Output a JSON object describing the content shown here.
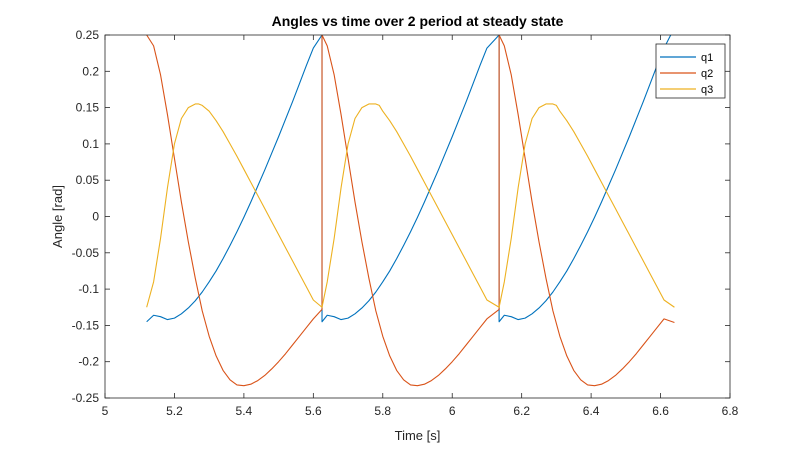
{
  "chart_data": {
    "type": "line",
    "title": "Angles vs time over 2 period at steady state",
    "xlabel": "Time [s]",
    "ylabel": "Angle [rad]",
    "xlim": [
      5,
      6.8
    ],
    "ylim": [
      -0.25,
      0.25
    ],
    "xticks": [
      5,
      5.2,
      5.4,
      5.6,
      5.8,
      6,
      6.2,
      6.4,
      6.6,
      6.8
    ],
    "xtick_labels": [
      "5",
      "5.2",
      "5.4",
      "5.6",
      "5.8",
      "6",
      "6.2",
      "6.4",
      "6.6",
      "6.8"
    ],
    "yticks": [
      -0.25,
      -0.2,
      -0.15,
      -0.1,
      -0.05,
      0,
      0.05,
      0.1,
      0.15,
      0.2,
      0.25
    ],
    "ytick_labels": [
      "-0.25",
      "-0.2",
      "-0.15",
      "-0.1",
      "-0.05",
      "0",
      "0.05",
      "0.1",
      "0.15",
      "0.2",
      "0.25"
    ],
    "grid": false,
    "legend_position": "top-right",
    "series": [
      {
        "name": "q1",
        "color": "#0072BD",
        "x": [
          5.12,
          5.14,
          5.16,
          5.18,
          5.2,
          5.22,
          5.24,
          5.26,
          5.28,
          5.3,
          5.32,
          5.34,
          5.36,
          5.38,
          5.4,
          5.42,
          5.44,
          5.46,
          5.48,
          5.5,
          5.52,
          5.54,
          5.56,
          5.58,
          5.6,
          5.625,
          5.625,
          5.64,
          5.66,
          5.68,
          5.7,
          5.72,
          5.74,
          5.76,
          5.78,
          5.8,
          5.82,
          5.84,
          5.86,
          5.88,
          5.9,
          5.92,
          5.94,
          5.96,
          5.98,
          6.0,
          6.02,
          6.04,
          6.06,
          6.08,
          6.1,
          6.135,
          6.135,
          6.15,
          6.17,
          6.19,
          6.21,
          6.23,
          6.25,
          6.27,
          6.29,
          6.31,
          6.33,
          6.35,
          6.37,
          6.39,
          6.41,
          6.43,
          6.45,
          6.47,
          6.49,
          6.51,
          6.53,
          6.55,
          6.57,
          6.59,
          6.61,
          6.64
        ],
        "y": [
          -0.145,
          -0.136,
          -0.138,
          -0.142,
          -0.14,
          -0.134,
          -0.126,
          -0.116,
          -0.104,
          -0.09,
          -0.075,
          -0.058,
          -0.04,
          -0.021,
          -0.001,
          0.02,
          0.042,
          0.064,
          0.087,
          0.11,
          0.134,
          0.158,
          0.183,
          0.208,
          0.232,
          0.25,
          -0.145,
          -0.136,
          -0.138,
          -0.142,
          -0.14,
          -0.134,
          -0.126,
          -0.116,
          -0.104,
          -0.09,
          -0.075,
          -0.058,
          -0.04,
          -0.021,
          -0.001,
          0.02,
          0.042,
          0.064,
          0.087,
          0.11,
          0.134,
          0.158,
          0.183,
          0.208,
          0.232,
          0.25,
          -0.145,
          -0.136,
          -0.138,
          -0.142,
          -0.14,
          -0.134,
          -0.126,
          -0.116,
          -0.104,
          -0.09,
          -0.075,
          -0.058,
          -0.04,
          -0.021,
          -0.001,
          0.02,
          0.042,
          0.064,
          0.087,
          0.11,
          0.134,
          0.158,
          0.183,
          0.208,
          0.232,
          0.26
        ]
      },
      {
        "name": "q2",
        "color": "#D95319",
        "x": [
          5.12,
          5.14,
          5.16,
          5.18,
          5.2,
          5.22,
          5.24,
          5.26,
          5.28,
          5.3,
          5.32,
          5.34,
          5.36,
          5.38,
          5.4,
          5.42,
          5.44,
          5.46,
          5.48,
          5.5,
          5.52,
          5.54,
          5.56,
          5.58,
          5.6,
          5.625,
          5.625,
          5.64,
          5.66,
          5.68,
          5.7,
          5.72,
          5.74,
          5.76,
          5.78,
          5.8,
          5.82,
          5.84,
          5.86,
          5.88,
          5.9,
          5.92,
          5.94,
          5.96,
          5.98,
          6.0,
          6.02,
          6.04,
          6.06,
          6.08,
          6.1,
          6.135,
          6.135,
          6.15,
          6.17,
          6.19,
          6.21,
          6.23,
          6.25,
          6.27,
          6.29,
          6.31,
          6.33,
          6.35,
          6.37,
          6.39,
          6.41,
          6.43,
          6.45,
          6.47,
          6.49,
          6.51,
          6.53,
          6.55,
          6.57,
          6.59,
          6.61,
          6.64
        ],
        "y": [
          0.25,
          0.235,
          0.195,
          0.14,
          0.08,
          0.02,
          -0.035,
          -0.085,
          -0.13,
          -0.165,
          -0.192,
          -0.212,
          -0.225,
          -0.232,
          -0.233,
          -0.231,
          -0.226,
          -0.219,
          -0.21,
          -0.2,
          -0.189,
          -0.177,
          -0.165,
          -0.153,
          -0.141,
          -0.128,
          0.25,
          0.235,
          0.195,
          0.14,
          0.08,
          0.02,
          -0.035,
          -0.085,
          -0.13,
          -0.165,
          -0.192,
          -0.212,
          -0.225,
          -0.232,
          -0.233,
          -0.231,
          -0.226,
          -0.219,
          -0.21,
          -0.2,
          -0.189,
          -0.177,
          -0.165,
          -0.153,
          -0.141,
          -0.128,
          0.25,
          0.235,
          0.195,
          0.14,
          0.08,
          0.02,
          -0.035,
          -0.085,
          -0.13,
          -0.165,
          -0.192,
          -0.212,
          -0.225,
          -0.232,
          -0.233,
          -0.231,
          -0.226,
          -0.219,
          -0.21,
          -0.2,
          -0.189,
          -0.177,
          -0.165,
          -0.153,
          -0.141,
          -0.146
        ]
      },
      {
        "name": "q3",
        "color": "#EDB120",
        "x": [
          5.12,
          5.14,
          5.16,
          5.18,
          5.2,
          5.22,
          5.24,
          5.26,
          5.27,
          5.28,
          5.3,
          5.32,
          5.34,
          5.36,
          5.38,
          5.4,
          5.42,
          5.44,
          5.46,
          5.48,
          5.5,
          5.52,
          5.54,
          5.56,
          5.58,
          5.6,
          5.625,
          5.64,
          5.66,
          5.68,
          5.7,
          5.72,
          5.74,
          5.76,
          5.78,
          5.79,
          5.8,
          5.82,
          5.84,
          5.86,
          5.88,
          5.9,
          5.92,
          5.94,
          5.96,
          5.98,
          6.0,
          6.02,
          6.04,
          6.06,
          6.08,
          6.1,
          6.135,
          6.15,
          6.17,
          6.19,
          6.21,
          6.23,
          6.25,
          6.27,
          6.29,
          6.3,
          6.31,
          6.33,
          6.35,
          6.37,
          6.39,
          6.41,
          6.43,
          6.45,
          6.47,
          6.49,
          6.51,
          6.53,
          6.55,
          6.57,
          6.59,
          6.61,
          6.64
        ],
        "y": [
          -0.125,
          -0.09,
          -0.03,
          0.04,
          0.1,
          0.135,
          0.15,
          0.155,
          0.155,
          0.153,
          0.145,
          0.132,
          0.117,
          0.1,
          0.083,
          0.065,
          0.047,
          0.029,
          0.011,
          -0.007,
          -0.025,
          -0.043,
          -0.061,
          -0.079,
          -0.097,
          -0.115,
          -0.125,
          -0.09,
          -0.03,
          0.04,
          0.1,
          0.135,
          0.15,
          0.155,
          0.155,
          0.153,
          0.145,
          0.132,
          0.117,
          0.1,
          0.083,
          0.065,
          0.047,
          0.029,
          0.011,
          -0.007,
          -0.025,
          -0.043,
          -0.061,
          -0.079,
          -0.097,
          -0.115,
          -0.125,
          -0.09,
          -0.03,
          0.04,
          0.1,
          0.135,
          0.15,
          0.155,
          0.155,
          0.153,
          0.145,
          0.132,
          0.117,
          0.1,
          0.083,
          0.065,
          0.047,
          0.029,
          0.011,
          -0.007,
          -0.025,
          -0.043,
          -0.061,
          -0.079,
          -0.097,
          -0.115,
          -0.125
        ]
      }
    ]
  }
}
